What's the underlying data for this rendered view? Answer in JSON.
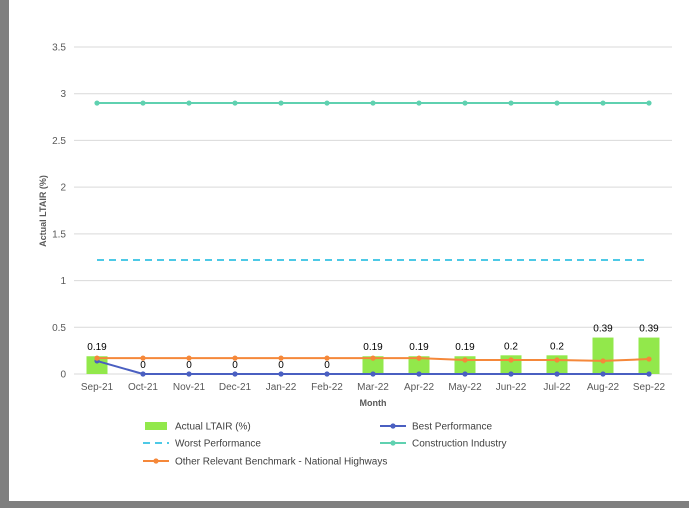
{
  "chart_data": {
    "type": "bar",
    "categories": [
      "Sep-21",
      "Oct-21",
      "Nov-21",
      "Dec-21",
      "Jan-22",
      "Feb-22",
      "Mar-22",
      "Apr-22",
      "May-22",
      "Jun-22",
      "Jul-22",
      "Aug-22",
      "Sep-22"
    ],
    "xlabel": "Month",
    "ylabel": "Actual LTAIR (%)",
    "ylim": [
      0,
      3.5
    ],
    "yticks": [
      "0",
      "0.5",
      "1",
      "1.5",
      "2",
      "2.5",
      "3",
      "3.5"
    ],
    "grid": true,
    "legend_position": "bottom",
    "series": [
      {
        "name": "Actual LTAIR (%)",
        "kind": "bar",
        "color": "#92e84b",
        "values": [
          0.19,
          0,
          0,
          0,
          0,
          0,
          0.19,
          0.19,
          0.19,
          0.2,
          0.2,
          0.39,
          0.39
        ],
        "labels": [
          "0.19",
          "0",
          "0",
          "0",
          "0",
          "0",
          "0.19",
          "0.19",
          "0.19",
          "0.2",
          "0.2",
          "0.39",
          "0.39"
        ]
      },
      {
        "name": "Best Performance",
        "kind": "line",
        "color": "#4a5fc1",
        "values": [
          0.14,
          0,
          0,
          0,
          0,
          0,
          0,
          0,
          0,
          0,
          0,
          0,
          0
        ]
      },
      {
        "name": "Worst Performance",
        "kind": "dashed-line",
        "color": "#4dc9e6",
        "values": [
          1.22,
          1.22,
          1.22,
          1.22,
          1.22,
          1.22,
          1.22,
          1.22,
          1.22,
          1.22,
          1.22,
          1.22,
          1.22
        ]
      },
      {
        "name": "Construction Industry",
        "kind": "line",
        "color": "#5fd1b0",
        "values": [
          2.9,
          2.9,
          2.9,
          2.9,
          2.9,
          2.9,
          2.9,
          2.9,
          2.9,
          2.9,
          2.9,
          2.9,
          2.9
        ]
      },
      {
        "name": "Other Relevant Benchmark - National Highways",
        "kind": "line",
        "color": "#f5883a",
        "values": [
          0.17,
          0.17,
          0.17,
          0.17,
          0.17,
          0.17,
          0.17,
          0.17,
          0.15,
          0.15,
          0.15,
          0.14,
          0.16
        ]
      }
    ]
  }
}
